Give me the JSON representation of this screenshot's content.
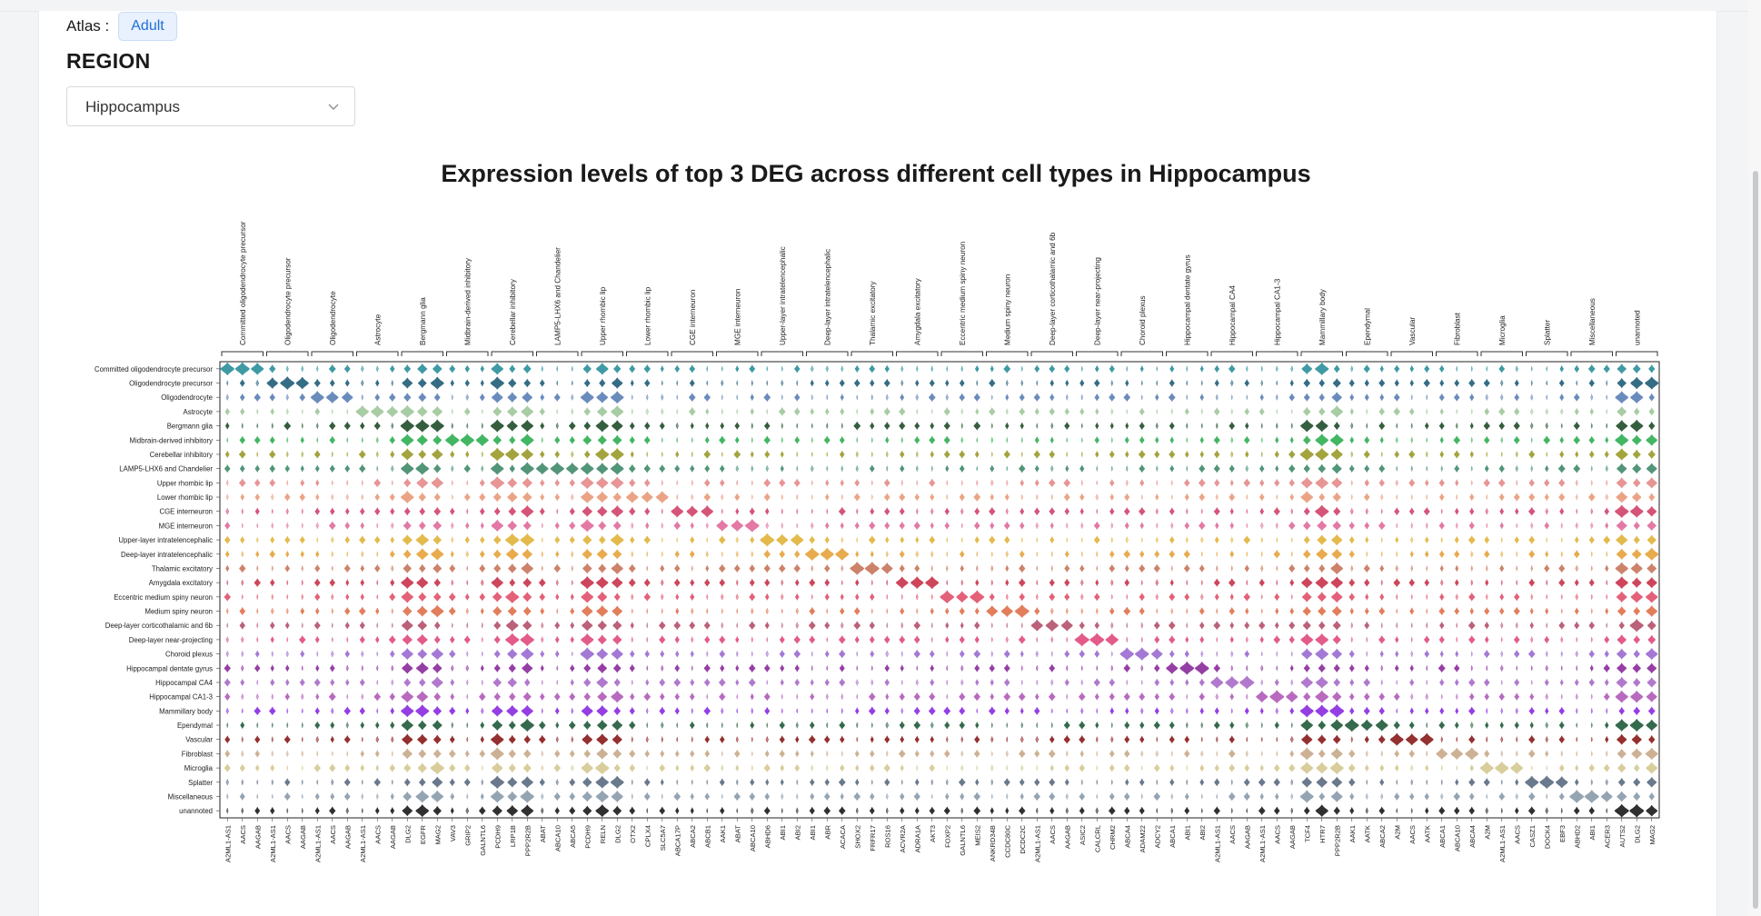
{
  "atlas": {
    "label": "Atlas :",
    "tag": "Adult"
  },
  "region": {
    "heading": "REGION",
    "selected": "Hippocampus"
  },
  "icons": {
    "dropdown": "chevron-down-icon"
  },
  "chart_data": {
    "type": "stacked-violin",
    "title": "Expression levels of top 3 DEG across different cell types in Hippocampus",
    "groups": [
      {
        "name": "Committed oligodendrocyte precursor",
        "genes": [
          "A2ML1-AS1",
          "AACS",
          "AAGAB"
        ]
      },
      {
        "name": "Oligodendrocyte precursor",
        "genes": [
          "A2ML1-AS1",
          "AACS",
          "AAGAB"
        ]
      },
      {
        "name": "Oligodendrocyte",
        "genes": [
          "A2ML1-AS1",
          "AACS",
          "AAGAB"
        ]
      },
      {
        "name": "Astrocyte",
        "genes": [
          "A2ML1-AS1",
          "AACS",
          "AAGAB"
        ]
      },
      {
        "name": "Bergmann glia",
        "genes": [
          "DLG2",
          "EGFR",
          "MAG2"
        ]
      },
      {
        "name": "Midbrain-derived inhibitory",
        "genes": [
          "VAV3",
          "GRIP2",
          "GALNTL6"
        ]
      },
      {
        "name": "Cerebellar inhibitory",
        "genes": [
          "PCDH9",
          "LRP1B",
          "PPP2R2B"
        ]
      },
      {
        "name": "LAMP5-LHX6 and Chandelier",
        "genes": [
          "ABAT",
          "ABCA10",
          "ABCA5"
        ]
      },
      {
        "name": "Upper rhombic lip",
        "genes": [
          "PCDH9",
          "RELN",
          "DLG2"
        ]
      },
      {
        "name": "Lower rhombic lip",
        "genes": [
          "OTX2",
          "CPLX4",
          "SLC5A7"
        ]
      },
      {
        "name": "CGE interneuron",
        "genes": [
          "ABCA17P",
          "ABCA2",
          "ABCB1"
        ]
      },
      {
        "name": "MGE interneuron",
        "genes": [
          "AAK1",
          "ABAT",
          "ABCA10"
        ]
      },
      {
        "name": "Upper-layer intratelencephalic",
        "genes": [
          "ABHD6",
          "ABI1",
          "ABI2"
        ]
      },
      {
        "name": "Deep-layer intratelencephalic",
        "genes": [
          "ABI1",
          "ABR",
          "ACACA"
        ]
      },
      {
        "name": "Thalamic excitatory",
        "genes": [
          "SHOX2",
          "FRFR17",
          "ROS16"
        ]
      },
      {
        "name": "Amygdala excitatory",
        "genes": [
          "ACVR2A",
          "ADRA1A",
          "AKT3"
        ]
      },
      {
        "name": "Eccentric medium spiny neuron",
        "genes": [
          "FOXP2",
          "GALNTL6",
          "MEIS2"
        ]
      },
      {
        "name": "Medium spiny neuron",
        "genes": [
          "ANKRD34B",
          "CCDC80C",
          "DCDC2C"
        ]
      },
      {
        "name": "Deep-layer corticothalamic and 6b",
        "genes": [
          "A2ML1-AS1",
          "AACS",
          "AAGAB"
        ]
      },
      {
        "name": "Deep-layer near-projecting",
        "genes": [
          "ASIC2",
          "CALCRL",
          "CHRM2"
        ]
      },
      {
        "name": "Choroid plexus",
        "genes": [
          "ABCA4",
          "ADAM22",
          "ADCY2"
        ]
      },
      {
        "name": "Hippocampal dentate gyrus",
        "genes": [
          "ABCA1",
          "ABI1",
          "ABI2"
        ]
      },
      {
        "name": "Hippocampal CA4",
        "genes": [
          "A2ML1-AS1",
          "AACS",
          "AAGAB"
        ]
      },
      {
        "name": "Hippocampal CA1-3",
        "genes": [
          "A2ML1-AS1",
          "AACS",
          "AAGAB"
        ]
      },
      {
        "name": "Mammillary body",
        "genes": [
          "TCF4",
          "HTR7",
          "PPP2R2B"
        ]
      },
      {
        "name": "Ependymal",
        "genes": [
          "AAK1",
          "AATK",
          "ABCA2"
        ]
      },
      {
        "name": "Vascular",
        "genes": [
          "A2M",
          "AACS",
          "AATK"
        ]
      },
      {
        "name": "Fibroblast",
        "genes": [
          "ABCA1",
          "ABCA10",
          "ABCA4"
        ]
      },
      {
        "name": "Microglia",
        "genes": [
          "A2M",
          "A2ML1-AS1",
          "AACS"
        ]
      },
      {
        "name": "Splatter",
        "genes": [
          "CASZ1",
          "DOCK4",
          "EBF3"
        ]
      },
      {
        "name": "Miscellaneous",
        "genes": [
          "ABHD2",
          "ABI1",
          "ACER3"
        ]
      },
      {
        "name": "unannoted",
        "genes": [
          "AUTS2",
          "DLG2",
          "MAG2"
        ]
      }
    ],
    "rows": [
      {
        "name": "Committed oligodendrocyte precursor",
        "color": "#2a8f9a"
      },
      {
        "name": "Oligodendrocyte precursor",
        "color": "#1f5d78"
      },
      {
        "name": "Oligodendrocyte",
        "color": "#5a7fb5"
      },
      {
        "name": "Astrocyte",
        "color": "#9fc79a"
      },
      {
        "name": "Bergmann glia",
        "color": "#1f4d2a"
      },
      {
        "name": "Midbrain-derived inhibitory",
        "color": "#2fae52"
      },
      {
        "name": "Cerebellar inhibitory",
        "color": "#9a9a2a"
      },
      {
        "name": "LAMP5-LHX6 and Chandelier",
        "color": "#3f8a6a"
      },
      {
        "name": "Upper rhombic lip",
        "color": "#e48a8a"
      },
      {
        "name": "Lower rhombic lip",
        "color": "#e89a78"
      },
      {
        "name": "CGE interneuron",
        "color": "#d0436a"
      },
      {
        "name": "MGE interneuron",
        "color": "#e06a9a"
      },
      {
        "name": "Upper-layer intratelencephalic",
        "color": "#e0b43a"
      },
      {
        "name": "Deep-layer intratelencephalic",
        "color": "#e6a23a"
      },
      {
        "name": "Thalamic excitatory",
        "color": "#c8745a"
      },
      {
        "name": "Amygdala excitatory",
        "color": "#c8324a"
      },
      {
        "name": "Eccentric medium spiny neuron",
        "color": "#e0506a"
      },
      {
        "name": "Medium spiny neuron",
        "color": "#e0704a"
      },
      {
        "name": "Deep-layer corticothalamic and 6b",
        "color": "#b4506a"
      },
      {
        "name": "Deep-layer near-projecting",
        "color": "#e04a7a"
      },
      {
        "name": "Choroid plexus",
        "color": "#9a6ad0"
      },
      {
        "name": "Hippocampal dentate gyrus",
        "color": "#8a2a9a"
      },
      {
        "name": "Hippocampal CA4",
        "color": "#a86ac8"
      },
      {
        "name": "Hippocampal CA1-3",
        "color": "#b05ab8"
      },
      {
        "name": "Mammillary body",
        "color": "#8a2ae0"
      },
      {
        "name": "Ependymal",
        "color": "#1f5a3a"
      },
      {
        "name": "Vascular",
        "color": "#8a1a1a"
      },
      {
        "name": "Fibroblast",
        "color": "#c8a888"
      },
      {
        "name": "Microglia",
        "color": "#d4c890"
      },
      {
        "name": "Splatter",
        "color": "#5a6a80"
      },
      {
        "name": "Miscellaneous",
        "color": "#8a9aaa"
      },
      {
        "name": "unannoted",
        "color": "#1a1a1a"
      }
    ]
  }
}
